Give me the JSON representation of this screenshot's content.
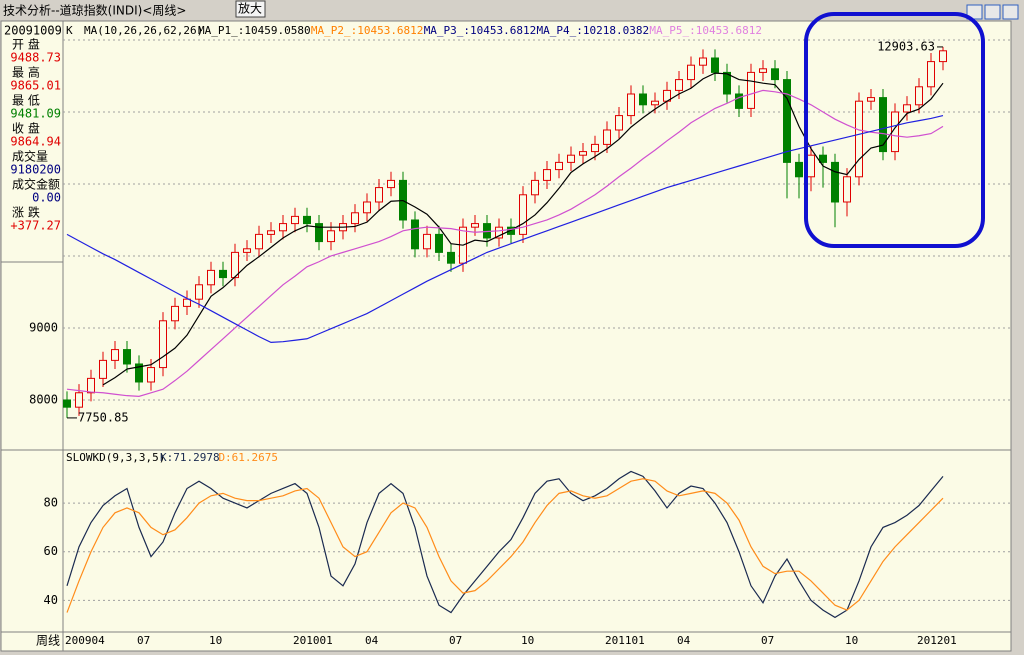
{
  "header": {
    "title": "技术分析--道琼指数(INDI)<周线>",
    "button": "放大"
  },
  "info": {
    "date": "20091009",
    "rows": [
      {
        "label": "开 盘",
        "value": "9488.73",
        "color": "#e00000"
      },
      {
        "label": "最 高",
        "value": "9865.01",
        "color": "#e00000"
      },
      {
        "label": "最 低",
        "value": "9481.09",
        "color": "#008000"
      },
      {
        "label": "收 盘",
        "value": "9864.94",
        "color": "#e00000"
      },
      {
        "label": "成交量",
        "value": "9180200",
        "color": "#000080"
      },
      {
        "label": "成交金额",
        "value": "0.00",
        "color": "#000080"
      },
      {
        "label": "涨 跌",
        "value": "+377.27",
        "color": "#e00000"
      }
    ]
  },
  "period_label": "周线",
  "chart_data": [
    {
      "type": "candlestick",
      "indicator_prefix": "K",
      "indicator": "MA(10,26,26,62,26)",
      "ma_labels": [
        {
          "text": "MA_P1_:10459.0580",
          "color": "#000000"
        },
        {
          "text": "MA_P2_:10453.6812",
          "color": "#ff8000"
        },
        {
          "text": "MA_P3_:10453.6812",
          "color": "#000080"
        },
        {
          "text": "MA_P4_:10218.0382",
          "color": "#000080"
        },
        {
          "text": "MA_P5_:10453.6812",
          "color": "#e080e0"
        }
      ],
      "up_color": "#e00000",
      "down_color": "#008000",
      "ylim": [
        7333,
        13250
      ],
      "yticks": [
        8000,
        9000,
        {
          "value": 10000,
          "label": null
        },
        {
          "value": 11000,
          "label": null
        },
        {
          "value": 12000,
          "label": null
        },
        {
          "value": 13000,
          "label": null
        }
      ],
      "grid": true,
      "categories": [
        "200904",
        null,
        null,
        null,
        null,
        null,
        "07",
        null,
        null,
        null,
        null,
        null,
        "10",
        null,
        null,
        null,
        null,
        null,
        null,
        "201001",
        null,
        null,
        null,
        null,
        null,
        "04",
        null,
        null,
        null,
        null,
        null,
        null,
        "07",
        null,
        null,
        null,
        null,
        null,
        "10",
        null,
        null,
        null,
        null,
        null,
        null,
        "201101",
        null,
        null,
        null,
        null,
        null,
        "04",
        null,
        null,
        null,
        null,
        null,
        null,
        "07",
        null,
        null,
        null,
        null,
        null,
        null,
        "10",
        null,
        null,
        null,
        null,
        null,
        "201201",
        null,
        null
      ],
      "open": [
        8000,
        7900,
        8100,
        8300,
        8550,
        8700,
        8500,
        8250,
        8450,
        9100,
        9300,
        9400,
        9600,
        9800,
        9700,
        10050,
        10100,
        10300,
        10350,
        10450,
        10550,
        10450,
        10200,
        10350,
        10450,
        10600,
        10750,
        10950,
        11050,
        10500,
        10100,
        10300,
        10050,
        9900,
        10400,
        10450,
        10250,
        10400,
        10300,
        10850,
        11050,
        11200,
        11300,
        11400,
        11450,
        11550,
        11750,
        11950,
        12250,
        12100,
        12150,
        12300,
        12450,
        12650,
        12750,
        12550,
        12250,
        12050,
        12550,
        12600,
        12450,
        11300,
        11100,
        11400,
        11300,
        10750,
        11100,
        12150,
        12200,
        11450,
        12000,
        12100,
        12350,
        12700
      ],
      "close": [
        7900,
        8100,
        8300,
        8550,
        8700,
        8500,
        8250,
        8450,
        9100,
        9300,
        9400,
        9600,
        9800,
        9700,
        10050,
        10100,
        10300,
        10350,
        10450,
        10550,
        10450,
        10200,
        10350,
        10450,
        10600,
        10750,
        10950,
        11050,
        10500,
        10100,
        10300,
        10050,
        9900,
        10400,
        10450,
        10250,
        10400,
        10300,
        10850,
        11050,
        11200,
        11300,
        11400,
        11450,
        11550,
        11750,
        11950,
        12250,
        12100,
        12150,
        12300,
        12450,
        12650,
        12750,
        12550,
        12250,
        12050,
        12550,
        12600,
        12450,
        11300,
        11100,
        11400,
        11300,
        10750,
        11100,
        12150,
        12200,
        11450,
        12000,
        12100,
        12350,
        12700,
        12850
      ],
      "high": [
        8120,
        8220,
        8420,
        8670,
        8820,
        8820,
        8620,
        8570,
        9220,
        9420,
        9520,
        9720,
        9920,
        9920,
        10170,
        10220,
        10420,
        10470,
        10570,
        10670,
        10670,
        10570,
        10470,
        10570,
        10720,
        10870,
        11070,
        11170,
        11170,
        10620,
        10420,
        10420,
        10170,
        10520,
        10570,
        10570,
        10520,
        10520,
        10970,
        11170,
        11320,
        11420,
        11520,
        11570,
        11670,
        11870,
        12070,
        12370,
        12370,
        12270,
        12420,
        12570,
        12770,
        12870,
        12870,
        12670,
        12370,
        12670,
        12720,
        12720,
        12570,
        11420,
        11520,
        11520,
        11420,
        11220,
        12270,
        12320,
        12320,
        12120,
        12220,
        12470,
        12820,
        12903.63
      ],
      "low": [
        7750.85,
        7780,
        7980,
        8180,
        8430,
        8380,
        8130,
        8130,
        8330,
        8980,
        9180,
        9280,
        9480,
        9580,
        9580,
        9930,
        9980,
        10180,
        10230,
        10330,
        10330,
        10080,
        10080,
        10230,
        10330,
        10480,
        10630,
        10830,
        10380,
        9980,
        9980,
        9930,
        9780,
        9780,
        10280,
        10130,
        10130,
        10180,
        10180,
        10730,
        10930,
        11080,
        11180,
        11280,
        11330,
        11430,
        11630,
        11830,
        11980,
        11980,
        12030,
        12180,
        12330,
        12530,
        12430,
        12130,
        11930,
        11930,
        12430,
        12330,
        10800,
        10800,
        10900,
        10950,
        10400,
        10550,
        10980,
        12030,
        11330,
        11330,
        11880,
        11980,
        12230,
        12580
      ],
      "lines": [
        {
          "color": "#000000",
          "values": [
            null,
            null,
            null,
            8210,
            8310,
            8430,
            8460,
            8490,
            8600,
            8720,
            8900,
            9170,
            9440,
            9560,
            9710,
            9870,
            9990,
            10120,
            10250,
            10350,
            10420,
            10400,
            10400,
            10400,
            10410,
            10470,
            10630,
            10760,
            10770,
            10680,
            10580,
            10400,
            10170,
            10150,
            10220,
            10200,
            10280,
            10360,
            10450,
            10570,
            10740,
            10940,
            11160,
            11280,
            11380,
            11490,
            11620,
            11790,
            11920,
            12040,
            12150,
            12250,
            12330,
            12460,
            12540,
            12530,
            12450,
            12430,
            12400,
            12380,
            12190,
            11800,
            11490,
            11250,
            11170,
            11130,
            11340,
            11500,
            11540,
            11780,
            11980,
            12040,
            12180,
            12400
          ]
        },
        {
          "color": "#d050d0",
          "values": [
            8150,
            8130,
            8110,
            8100,
            8080,
            8060,
            8050,
            8100,
            8150,
            8270,
            8400,
            8550,
            8700,
            8850,
            9000,
            9150,
            9300,
            9450,
            9600,
            9720,
            9850,
            9920,
            10000,
            10050,
            10100,
            10150,
            10200,
            10270,
            10350,
            10380,
            10400,
            10390,
            10380,
            10350,
            10330,
            10340,
            10350,
            10370,
            10400,
            10450,
            10500,
            10570,
            10650,
            10750,
            10850,
            10970,
            11100,
            11220,
            11350,
            11470,
            11600,
            11720,
            11850,
            11950,
            12050,
            12120,
            12200,
            12250,
            12300,
            12280,
            12250,
            12180,
            12100,
            12000,
            11900,
            11820,
            11750,
            11720,
            11700,
            11670,
            11650,
            11670,
            11700,
            11800
          ]
        },
        {
          "color": "#2020e0",
          "values": [
            10300,
            10210,
            10120,
            10030,
            9950,
            9860,
            9770,
            9680,
            9590,
            9500,
            9410,
            9330,
            9240,
            9150,
            9060,
            8970,
            8880,
            8800,
            8810,
            8830,
            8850,
            8920,
            8990,
            9060,
            9130,
            9200,
            9290,
            9380,
            9470,
            9560,
            9650,
            9730,
            9810,
            9890,
            9970,
            10050,
            10110,
            10170,
            10230,
            10290,
            10350,
            10410,
            10470,
            10530,
            10590,
            10650,
            10710,
            10770,
            10830,
            10890,
            10950,
            11000,
            11050,
            11100,
            11150,
            11200,
            11250,
            11300,
            11350,
            11400,
            11450,
            11490,
            11530,
            11570,
            11610,
            11650,
            11690,
            11730,
            11770,
            11810,
            11850,
            11880,
            11910,
            11950
          ]
        }
      ],
      "annotations": [
        {
          "text": "12903.63",
          "index": 73,
          "value": 12903.63
        },
        {
          "text": "7750.85",
          "index": 0,
          "value": 7750.85
        }
      ]
    },
    {
      "type": "line",
      "indicator": "SLOWKD(9,3,3,5)",
      "ylim": [
        27,
        101
      ],
      "yticks": [
        40,
        60,
        80
      ],
      "grid": true,
      "series": [
        {
          "name": "K:71.2978",
          "color": "#1a2a50",
          "values": [
            46,
            62,
            72,
            79,
            83,
            86,
            70,
            58,
            64,
            76,
            86,
            89,
            86,
            82,
            80,
            78,
            81,
            84,
            86,
            88,
            84,
            70,
            50,
            46,
            55,
            72,
            84,
            88,
            84,
            70,
            50,
            38,
            35,
            42,
            48,
            54,
            60,
            65,
            74,
            84,
            89,
            90,
            84,
            81,
            83,
            86,
            90,
            93,
            91,
            85,
            78,
            84,
            87,
            86,
            80,
            72,
            60,
            46,
            39,
            50,
            57,
            48,
            40,
            36,
            33,
            36,
            48,
            62,
            70,
            72,
            75,
            79,
            85,
            91
          ]
        },
        {
          "name": "D:61.2675",
          "color": "#ff8c1a",
          "values": [
            35,
            48,
            60,
            70,
            76,
            78,
            76,
            70,
            67,
            69,
            74,
            80,
            83,
            84,
            82,
            81,
            81,
            82,
            83,
            85,
            86,
            82,
            72,
            62,
            58,
            60,
            68,
            76,
            80,
            78,
            70,
            58,
            48,
            43,
            44,
            48,
            53,
            58,
            64,
            72,
            79,
            84,
            85,
            83,
            82,
            83,
            86,
            89,
            90,
            89,
            85,
            83,
            84,
            85,
            84,
            80,
            73,
            62,
            54,
            51,
            52,
            52,
            48,
            43,
            38,
            36,
            40,
            48,
            56,
            62,
            67,
            72,
            77,
            82
          ]
        }
      ]
    }
  ]
}
